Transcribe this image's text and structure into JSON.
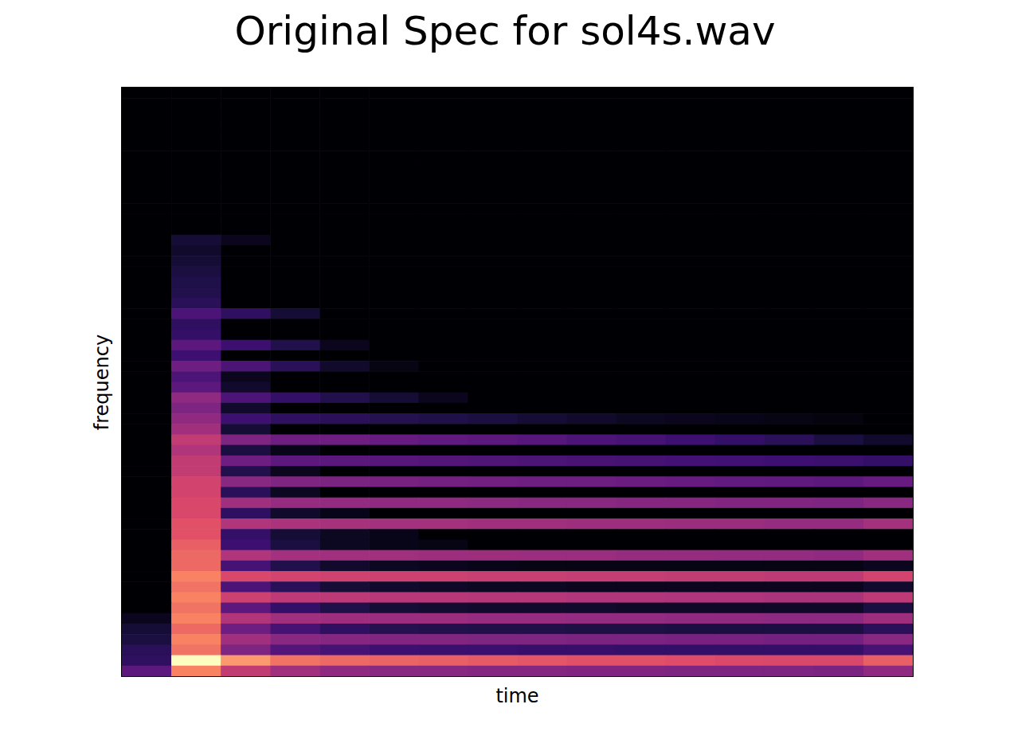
{
  "chart_data": {
    "type": "heatmap",
    "title": "Original Spec for sol4s.wav",
    "x_label": "time",
    "y_label": "frequency",
    "tick_labels": false,
    "cells": [
      [
        0,
        0,
        0,
        0,
        0,
        0,
        0,
        0,
        0,
        0,
        0,
        0,
        0,
        0,
        0,
        0
      ],
      [
        0,
        0,
        0,
        0,
        0,
        0,
        0,
        0,
        0,
        0,
        0,
        0,
        0,
        0,
        0,
        0
      ],
      [
        0,
        0,
        0,
        0,
        0,
        0,
        0,
        0,
        0,
        0,
        0,
        0,
        0,
        0,
        0,
        0
      ],
      [
        0,
        0,
        0,
        0,
        0,
        0,
        0,
        0,
        0,
        0,
        0,
        0,
        0,
        0,
        0,
        0
      ],
      [
        0,
        0,
        0,
        0,
        0,
        0,
        0,
        0,
        0,
        0,
        0,
        0,
        0,
        0,
        0,
        0
      ],
      [
        0,
        0,
        0,
        0,
        0,
        0,
        0,
        0,
        0,
        0,
        0,
        0,
        0,
        0,
        0,
        0
      ],
      [
        0,
        0,
        0,
        0,
        0,
        0,
        0,
        0,
        0,
        0,
        0,
        0,
        0,
        0,
        0,
        0
      ],
      [
        0,
        0,
        0,
        0,
        0,
        0,
        0,
        0,
        0,
        0,
        0,
        0,
        0,
        0,
        0,
        0
      ],
      [
        0,
        0,
        0,
        0,
        0,
        0,
        0,
        0,
        0,
        0,
        0,
        0,
        0,
        0,
        0,
        0
      ],
      [
        0,
        0,
        0,
        0,
        0,
        0,
        0,
        0,
        0,
        0,
        0,
        0,
        0,
        0,
        0,
        0
      ],
      [
        0,
        0,
        0,
        0,
        0,
        0,
        0,
        0,
        0,
        0,
        0,
        0,
        0,
        0,
        0,
        0
      ],
      [
        0,
        0,
        0,
        0,
        0,
        0,
        0,
        0,
        0,
        0,
        0,
        0,
        0,
        0,
        0,
        0
      ],
      [
        0,
        0,
        0,
        0,
        0,
        0,
        0,
        0,
        0,
        0,
        0,
        0,
        0,
        0,
        0,
        0
      ],
      [
        0,
        0,
        0,
        0,
        0,
        0,
        0,
        0,
        0,
        0,
        0,
        0,
        0,
        0,
        0,
        0
      ],
      [
        0,
        10,
        5,
        0,
        0,
        0,
        0,
        0,
        0,
        0,
        0,
        0,
        0,
        0,
        0,
        0
      ],
      [
        0,
        8,
        0,
        0,
        0,
        0,
        0,
        0,
        0,
        0,
        0,
        0,
        0,
        0,
        0,
        0
      ],
      [
        0,
        10,
        0,
        0,
        0,
        0,
        0,
        0,
        0,
        0,
        0,
        0,
        0,
        0,
        0,
        0
      ],
      [
        0,
        12,
        0,
        0,
        0,
        0,
        0,
        0,
        0,
        0,
        0,
        0,
        0,
        0,
        0,
        0
      ],
      [
        0,
        14,
        0,
        0,
        0,
        0,
        0,
        0,
        0,
        0,
        0,
        0,
        0,
        0,
        0,
        0
      ],
      [
        0,
        15,
        0,
        0,
        0,
        0,
        0,
        0,
        0,
        0,
        0,
        0,
        0,
        0,
        0,
        0
      ],
      [
        0,
        18,
        0,
        0,
        0,
        0,
        0,
        0,
        0,
        0,
        0,
        0,
        0,
        0,
        0,
        0
      ],
      [
        0,
        30,
        20,
        10,
        0,
        0,
        0,
        0,
        0,
        0,
        0,
        0,
        0,
        0,
        0,
        0
      ],
      [
        0,
        20,
        0,
        0,
        0,
        0,
        0,
        0,
        0,
        0,
        0,
        0,
        0,
        0,
        0,
        0
      ],
      [
        0,
        22,
        0,
        0,
        0,
        0,
        0,
        0,
        0,
        0,
        0,
        0,
        0,
        0,
        0,
        0
      ],
      [
        0,
        35,
        25,
        15,
        5,
        0,
        0,
        0,
        0,
        0,
        0,
        0,
        0,
        0,
        0,
        0
      ],
      [
        0,
        25,
        0,
        0,
        0,
        0,
        0,
        0,
        0,
        0,
        0,
        0,
        0,
        0,
        0,
        0
      ],
      [
        0,
        40,
        30,
        18,
        8,
        3,
        0,
        0,
        0,
        0,
        0,
        0,
        0,
        0,
        0,
        0
      ],
      [
        0,
        30,
        5,
        0,
        0,
        0,
        0,
        0,
        0,
        0,
        0,
        0,
        0,
        0,
        0,
        0
      ],
      [
        0,
        35,
        8,
        0,
        0,
        0,
        0,
        0,
        0,
        0,
        0,
        0,
        0,
        0,
        0,
        0
      ],
      [
        0,
        50,
        30,
        22,
        15,
        10,
        5,
        0,
        0,
        0,
        0,
        0,
        0,
        0,
        0,
        0
      ],
      [
        0,
        45,
        8,
        0,
        0,
        0,
        0,
        0,
        0,
        0,
        0,
        0,
        0,
        0,
        0,
        0
      ],
      [
        0,
        50,
        25,
        20,
        18,
        16,
        14,
        12,
        10,
        8,
        6,
        5,
        4,
        3,
        2,
        0
      ],
      [
        0,
        55,
        10,
        0,
        0,
        0,
        0,
        0,
        0,
        0,
        0,
        0,
        0,
        0,
        0,
        0
      ],
      [
        0,
        65,
        45,
        40,
        40,
        38,
        36,
        35,
        33,
        30,
        28,
        25,
        22,
        18,
        12,
        8
      ],
      [
        0,
        60,
        12,
        4,
        0,
        0,
        0,
        0,
        0,
        0,
        0,
        0,
        0,
        0,
        0,
        0
      ],
      [
        0,
        65,
        40,
        35,
        34,
        33,
        32,
        31,
        30,
        29,
        28,
        27,
        26,
        25,
        24,
        22
      ],
      [
        0,
        65,
        15,
        5,
        0,
        0,
        0,
        0,
        0,
        0,
        0,
        0,
        0,
        0,
        0,
        0
      ],
      [
        0,
        70,
        48,
        45,
        44,
        43,
        42,
        41,
        40,
        40,
        39,
        38,
        37,
        36,
        35,
        38
      ],
      [
        0,
        70,
        18,
        6,
        0,
        0,
        0,
        0,
        0,
        0,
        0,
        0,
        0,
        0,
        0,
        0
      ],
      [
        0,
        72,
        55,
        52,
        51,
        50,
        50,
        49,
        48,
        48,
        47,
        47,
        46,
        46,
        45,
        48
      ],
      [
        0,
        72,
        20,
        8,
        4,
        0,
        0,
        0,
        0,
        0,
        0,
        0,
        0,
        0,
        0,
        0
      ],
      [
        0,
        75,
        60,
        58,
        57,
        56,
        56,
        55,
        55,
        54,
        54,
        53,
        53,
        52,
        52,
        56
      ],
      [
        0,
        75,
        22,
        10,
        6,
        4,
        0,
        0,
        0,
        0,
        0,
        0,
        0,
        0,
        0,
        0
      ],
      [
        0,
        78,
        25,
        12,
        6,
        4,
        3,
        0,
        0,
        0,
        0,
        0,
        0,
        0,
        0,
        0
      ],
      [
        0,
        80,
        60,
        56,
        55,
        55,
        54,
        54,
        53,
        53,
        52,
        52,
        51,
        51,
        50,
        55
      ],
      [
        0,
        80,
        28,
        15,
        8,
        6,
        5,
        4,
        3,
        3,
        3,
        3,
        3,
        3,
        3,
        5
      ],
      [
        0,
        85,
        72,
        70,
        69,
        68,
        68,
        67,
        67,
        66,
        66,
        65,
        65,
        64,
        64,
        70
      ],
      [
        0,
        82,
        30,
        18,
        10,
        8,
        7,
        6,
        6,
        5,
        5,
        5,
        5,
        5,
        5,
        8
      ],
      [
        0,
        85,
        68,
        64,
        63,
        62,
        62,
        61,
        61,
        60,
        60,
        59,
        59,
        58,
        58,
        64
      ],
      [
        0,
        82,
        35,
        22,
        14,
        10,
        9,
        8,
        8,
        8,
        7,
        7,
        7,
        7,
        7,
        12
      ],
      [
        5,
        85,
        60,
        55,
        54,
        53,
        53,
        52,
        52,
        51,
        51,
        50,
        50,
        49,
        49,
        54
      ],
      [
        10,
        80,
        40,
        28,
        20,
        16,
        15,
        14,
        14,
        13,
        13,
        12,
        12,
        12,
        12,
        18
      ],
      [
        12,
        85,
        55,
        48,
        47,
        46,
        46,
        45,
        45,
        44,
        44,
        43,
        43,
        42,
        42,
        48
      ],
      [
        18,
        82,
        45,
        32,
        28,
        25,
        24,
        24,
        23,
        23,
        22,
        22,
        22,
        22,
        22,
        28
      ],
      [
        20,
        98,
        88,
        82,
        80,
        79,
        78,
        77,
        76,
        75,
        75,
        74,
        73,
        72,
        72,
        78
      ],
      [
        35,
        85,
        65,
        55,
        50,
        48,
        48,
        47,
        47,
        46,
        46,
        45,
        45,
        45,
        44,
        50
      ]
    ]
  }
}
